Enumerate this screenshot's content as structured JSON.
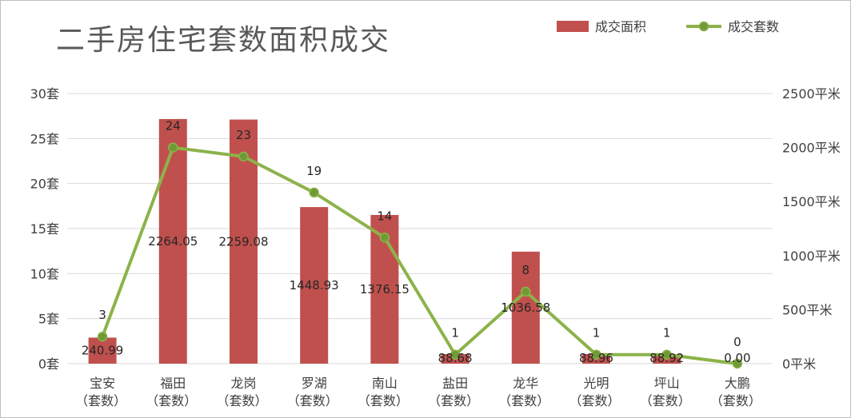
{
  "chart_data": {
    "type": "bar",
    "title": "二手房住宅套数面积成交",
    "categories": [
      [
        "宝安",
        "（套数）"
      ],
      [
        "福田",
        "（套数）"
      ],
      [
        "龙岗",
        "（套数）"
      ],
      [
        "罗湖",
        "（套数）"
      ],
      [
        "南山",
        "（套数）"
      ],
      [
        "盐田",
        "（套数）"
      ],
      [
        "龙华",
        "（套数）"
      ],
      [
        "光明",
        "（套数）"
      ],
      [
        "坪山",
        "（套数）"
      ],
      [
        "大鹏",
        "（套数）"
      ]
    ],
    "series": [
      {
        "name": "成交面积",
        "type": "bar",
        "axis": "right",
        "color": "#c0504d",
        "values": [
          240.99,
          2264.05,
          2259.08,
          1448.93,
          1376.15,
          88.68,
          1036.58,
          88.96,
          88.92,
          0.0
        ],
        "labels": [
          "240.99",
          "2264.05",
          "2259.08",
          "1448.93",
          "1376.15",
          "88.68",
          "1036.58",
          "88.96",
          "88.92",
          "0.00"
        ]
      },
      {
        "name": "成交套数",
        "type": "line",
        "axis": "left",
        "color": "#8cb34a",
        "marker_color": "#6f9a35",
        "values": [
          3,
          24,
          23,
          19,
          14,
          1,
          8,
          1,
          1,
          0
        ],
        "labels": [
          "3",
          "24",
          "23",
          "19",
          "14",
          "1",
          "8",
          "1",
          "1",
          "0"
        ]
      }
    ],
    "y_left": {
      "ylim": [
        0,
        30
      ],
      "ticks": [
        0,
        5,
        10,
        15,
        20,
        25,
        30
      ],
      "tick_labels": [
        "0套",
        "5套",
        "10套",
        "15套",
        "20套",
        "25套",
        "30套"
      ]
    },
    "y_right": {
      "ylim": [
        0,
        2500
      ],
      "ticks": [
        0,
        500,
        1000,
        1500,
        2000,
        2500
      ],
      "tick_labels": [
        "0平米",
        "500平米",
        "1000平米",
        "1500平米",
        "2000平米",
        "2500平米"
      ]
    },
    "grid": true,
    "legend_position": "top-right",
    "gridline_color": "#d9d9d9"
  }
}
